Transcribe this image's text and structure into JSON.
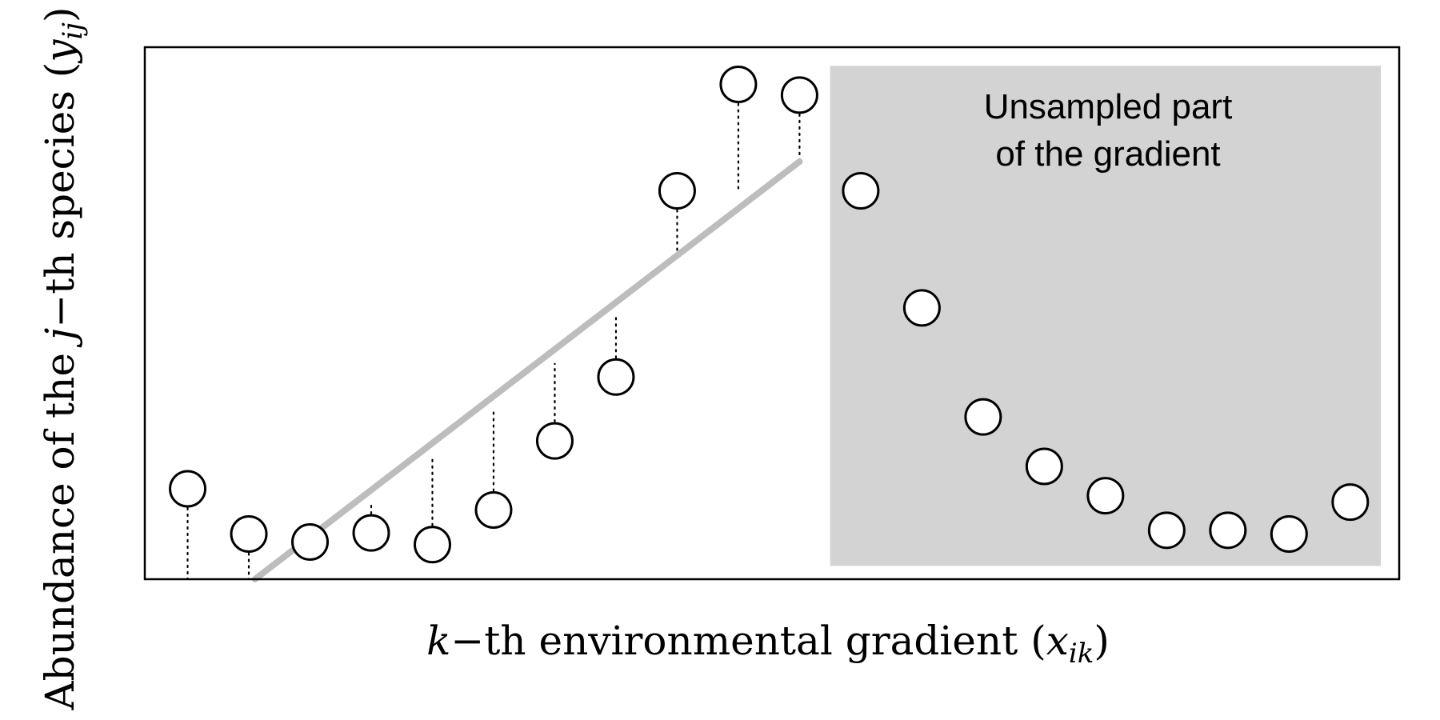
{
  "chart_data": {
    "type": "scatter",
    "xlabel": {
      "var": "k",
      "text": "−th environmental gradient (",
      "sym": "x",
      "sub": "ik",
      "close": ")"
    },
    "ylabel": {
      "prefix": "Abundance of the ",
      "var": "j",
      "text": "−th species (",
      "sym": "y",
      "sub": "ij",
      "close": ")"
    },
    "xlim": [
      0,
      20.5
    ],
    "ylim": [
      0,
      10
    ],
    "grid": false,
    "legend": "none",
    "unsampled_region": {
      "x_range": [
        11.2,
        20.2
      ],
      "y_range": [
        0.25,
        9.65
      ],
      "label_lines": [
        "Unsampled part",
        "of the gradient"
      ],
      "color": "#d3d3d3"
    },
    "fit_line": {
      "x": [
        1.8,
        10.7
      ],
      "y": [
        0.0,
        7.85
      ],
      "color": "#bdbdbd"
    },
    "sampled_points": {
      "x": [
        0.7,
        1.7,
        2.7,
        3.7,
        4.7,
        5.7,
        6.7,
        7.7,
        8.7,
        9.7,
        10.7
      ],
      "y": [
        1.7,
        0.85,
        0.7,
        0.87,
        0.65,
        1.3,
        2.6,
        3.8,
        7.3,
        9.3,
        9.1
      ],
      "residual_to": [
        0.0,
        0.0,
        0.55,
        1.43,
        2.3,
        3.17,
        4.05,
        4.93,
        6.1,
        7.3,
        7.85
      ]
    },
    "unsampled_points": {
      "x": [
        11.7,
        12.7,
        13.7,
        14.7,
        15.7,
        16.7,
        17.7,
        18.7,
        19.7
      ],
      "y": [
        7.3,
        5.1,
        3.05,
        2.12,
        1.57,
        0.92,
        0.92,
        0.85,
        1.45
      ]
    }
  }
}
